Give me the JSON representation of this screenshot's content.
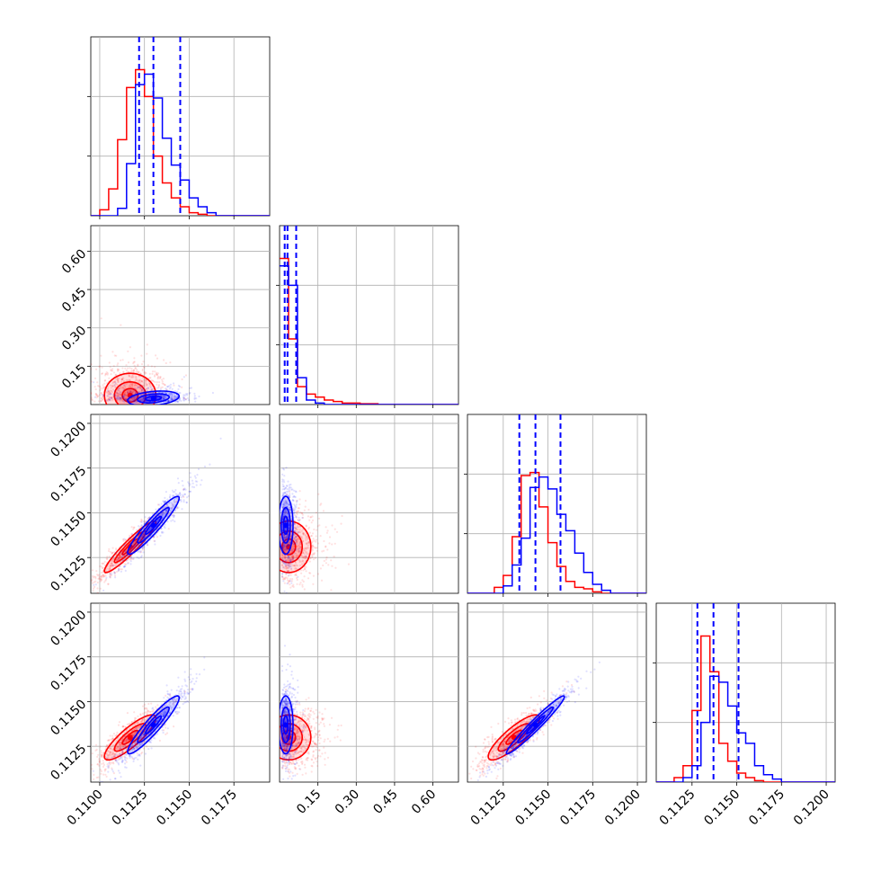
{
  "colors": {
    "series_red": "#ff0000",
    "series_blue": "#0000ff"
  },
  "chart_data": {
    "type": "corner",
    "grid": true,
    "ndim": 4,
    "params": [
      {
        "range": [
          0.1095,
          0.1195
        ],
        "ticks": [
          0.11,
          0.1125,
          0.115,
          0.1175
        ],
        "ticklabels": [
          "0.1100",
          "0.1125",
          "0.1150",
          "0.1175"
        ]
      },
      {
        "range": [
          0.0,
          0.7
        ],
        "ticks": [
          0.15,
          0.3,
          0.45,
          0.6
        ],
        "ticklabels": [
          "0.15",
          "0.30",
          "0.45",
          "0.60"
        ]
      },
      {
        "range": [
          0.1105,
          0.1205
        ],
        "ticks": [
          0.1125,
          0.115,
          0.1175,
          0.12
        ],
        "ticklabels": [
          "0.1125",
          "0.1150",
          "0.1175",
          "0.1200"
        ]
      },
      {
        "range": [
          0.1105,
          0.1205
        ],
        "ticks": [
          0.1125,
          0.115,
          0.1175,
          0.12
        ],
        "ticklabels": [
          "0.1125",
          "0.1150",
          "0.1175",
          "0.1200"
        ]
      }
    ],
    "series": [
      {
        "color": "#ff0000",
        "means": [
          0.1117,
          0.06,
          0.1131,
          0.113
        ],
        "stds": [
          0.0008,
          0.06,
          0.0008,
          0.0007
        ],
        "hist": [
          [
            0,
            0.04,
            0.18,
            0.51,
            0.86,
            0.98,
            0.8,
            0.4,
            0.22,
            0.12,
            0.06,
            0.02,
            0.01,
            0,
            0,
            0,
            0,
            0,
            0,
            0
          ],
          [
            0.98,
            0.44,
            0.12,
            0.07,
            0.05,
            0.03,
            0.02,
            0.01,
            0.01,
            0.005,
            0.005,
            0,
            0,
            0,
            0,
            0,
            0,
            0,
            0,
            0
          ],
          [
            0,
            0,
            0,
            0.04,
            0.12,
            0.38,
            0.79,
            0.81,
            0.58,
            0.34,
            0.18,
            0.08,
            0.04,
            0.03,
            0.01,
            0,
            0,
            0,
            0,
            0
          ],
          [
            0,
            0,
            0.03,
            0.11,
            0.48,
            0.98,
            0.74,
            0.26,
            0.14,
            0.06,
            0.03,
            0.01,
            0,
            0,
            0,
            0,
            0,
            0,
            0,
            0
          ]
        ]
      },
      {
        "color": "#0000ff",
        "means": [
          0.113,
          0.04,
          0.1143,
          0.1137
        ],
        "stds": [
          0.0008,
          0.02,
          0.0009,
          0.0009
        ],
        "quantiles": [
          [
            0.1122,
            0.113,
            0.1145
          ],
          [
            0.02,
            0.031,
            0.065
          ],
          [
            0.1134,
            0.1143,
            0.1157
          ],
          [
            0.1128,
            0.1137,
            0.1151
          ]
        ],
        "hist": [
          [
            0,
            0,
            0,
            0.05,
            0.35,
            0.88,
            0.95,
            0.79,
            0.52,
            0.34,
            0.24,
            0.12,
            0.06,
            0.02,
            0,
            0,
            0,
            0,
            0,
            0
          ],
          [
            0.93,
            0.8,
            0.18,
            0.03,
            0.01,
            0,
            0,
            0,
            0,
            0,
            0,
            0,
            0,
            0,
            0,
            0,
            0,
            0,
            0,
            0
          ],
          [
            0,
            0,
            0,
            0,
            0.05,
            0.19,
            0.37,
            0.71,
            0.78,
            0.7,
            0.53,
            0.42,
            0.27,
            0.14,
            0.06,
            0.02,
            0,
            0,
            0,
            0
          ],
          [
            0,
            0,
            0,
            0.03,
            0.11,
            0.4,
            0.71,
            0.67,
            0.51,
            0.33,
            0.26,
            0.11,
            0.05,
            0.02,
            0,
            0,
            0,
            0,
            0,
            0
          ]
        ]
      }
    ]
  }
}
